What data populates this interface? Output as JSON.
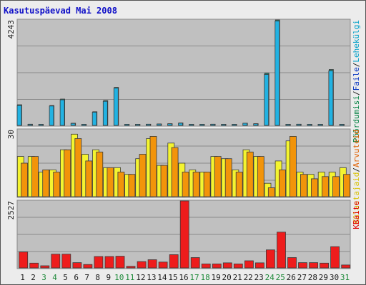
{
  "chart_data": {
    "type": "bar",
    "title": "Kasutuspäevad Mai 2008",
    "categories": [
      "1",
      "2",
      "3",
      "4",
      "5",
      "6",
      "7",
      "8",
      "9",
      "10",
      "11",
      "12",
      "13",
      "14",
      "15",
      "16",
      "17",
      "18",
      "19",
      "20",
      "21",
      "22",
      "23",
      "24",
      "25",
      "26",
      "27",
      "28",
      "29",
      "30",
      "31"
    ],
    "weekend_days": [
      "3",
      "4",
      "10",
      "11",
      "17",
      "18",
      "24",
      "25",
      "31"
    ],
    "panels": [
      {
        "max_label": "4243",
        "ylim": [
          0,
          4243
        ],
        "legend": [
          {
            "label": "Pöördumisi",
            "color": "#008040"
          },
          {
            "label": "/",
            "color": "#1a1a1a"
          },
          {
            "label": "Faile",
            "color": "#0030c0"
          },
          {
            "label": "/",
            "color": "#1a1a1a"
          },
          {
            "label": "Lehekülgi",
            "color": "#00a0c8"
          }
        ],
        "series": [
          {
            "name": "Pöördumisi",
            "color": "#1e7e6a",
            "values": [
              830,
              50,
              10,
              800,
              1060,
              90,
              35,
              550,
              1000,
              1530,
              30,
              35,
              50,
              60,
              70,
              100,
              10,
              20,
              50,
              40,
              30,
              90,
              70,
              2100,
              4243,
              40,
              50,
              20,
              20,
              2250,
              30
            ]
          },
          {
            "name": "Faile",
            "color": "#1e4fd0",
            "values": [
              0,
              0,
              0,
              0,
              0,
              0,
              0,
              0,
              0,
              0,
              0,
              0,
              0,
              0,
              0,
              0,
              0,
              0,
              0,
              0,
              0,
              0,
              0,
              0,
              0,
              0,
              0,
              0,
              0,
              0,
              0
            ]
          },
          {
            "name": "Lehekülgi",
            "color": "#22b2e2",
            "values": [
              800,
              40,
              10,
              780,
              1030,
              80,
              30,
              530,
              970,
              1500,
              25,
              30,
              45,
              55,
              65,
              90,
              10,
              15,
              45,
              35,
              25,
              85,
              65,
              2050,
              4200,
              35,
              45,
              15,
              15,
              2200,
              25
            ]
          }
        ]
      },
      {
        "max_label": "30",
        "ylim": [
          0,
          30
        ],
        "legend": [
          {
            "label": "Külastajaid",
            "color": "#d8c000"
          },
          {
            "label": "/",
            "color": "#1a1a1a"
          },
          {
            "label": "Arvuteid",
            "color": "#e06000"
          }
        ],
        "series": [
          {
            "name": "Külastajaid",
            "color": "#f4f430",
            "values": [
              18,
              18,
              11,
              12,
              21,
              28,
              19,
              21,
              13,
              13,
              10,
              17,
              26,
              14,
              24,
              15,
              12,
              11,
              18,
              17,
              12,
              21,
              18,
              6,
              16,
              25,
              11,
              10,
              11,
              11,
              13
            ]
          },
          {
            "name": "Arvuteid",
            "color": "#f2940a",
            "values": [
              15,
              18,
              12,
              11,
              21,
              26,
              16,
              20,
              13,
              11,
              10,
              19,
              27,
              14,
              22,
              11,
              11,
              11,
              18,
              17,
              11,
              20,
              18,
              4,
              12,
              27,
              10,
              8,
              9,
              9,
              10
            ]
          }
        ]
      },
      {
        "max_label": "2527",
        "ylim": [
          0,
          2527
        ],
        "legend": [
          {
            "label": "KBaite",
            "color": "#e00000"
          }
        ],
        "series": [
          {
            "name": "KBaite",
            "color": "#ee1c1c",
            "values": [
              600,
              180,
              80,
              520,
              520,
              200,
              130,
              430,
              430,
              440,
              60,
              240,
              310,
              220,
              500,
              2527,
              390,
              150,
              150,
              190,
              150,
              270,
              190,
              680,
              1350,
              390,
              200,
              200,
              180,
              800,
              110
            ]
          }
        ]
      }
    ]
  }
}
